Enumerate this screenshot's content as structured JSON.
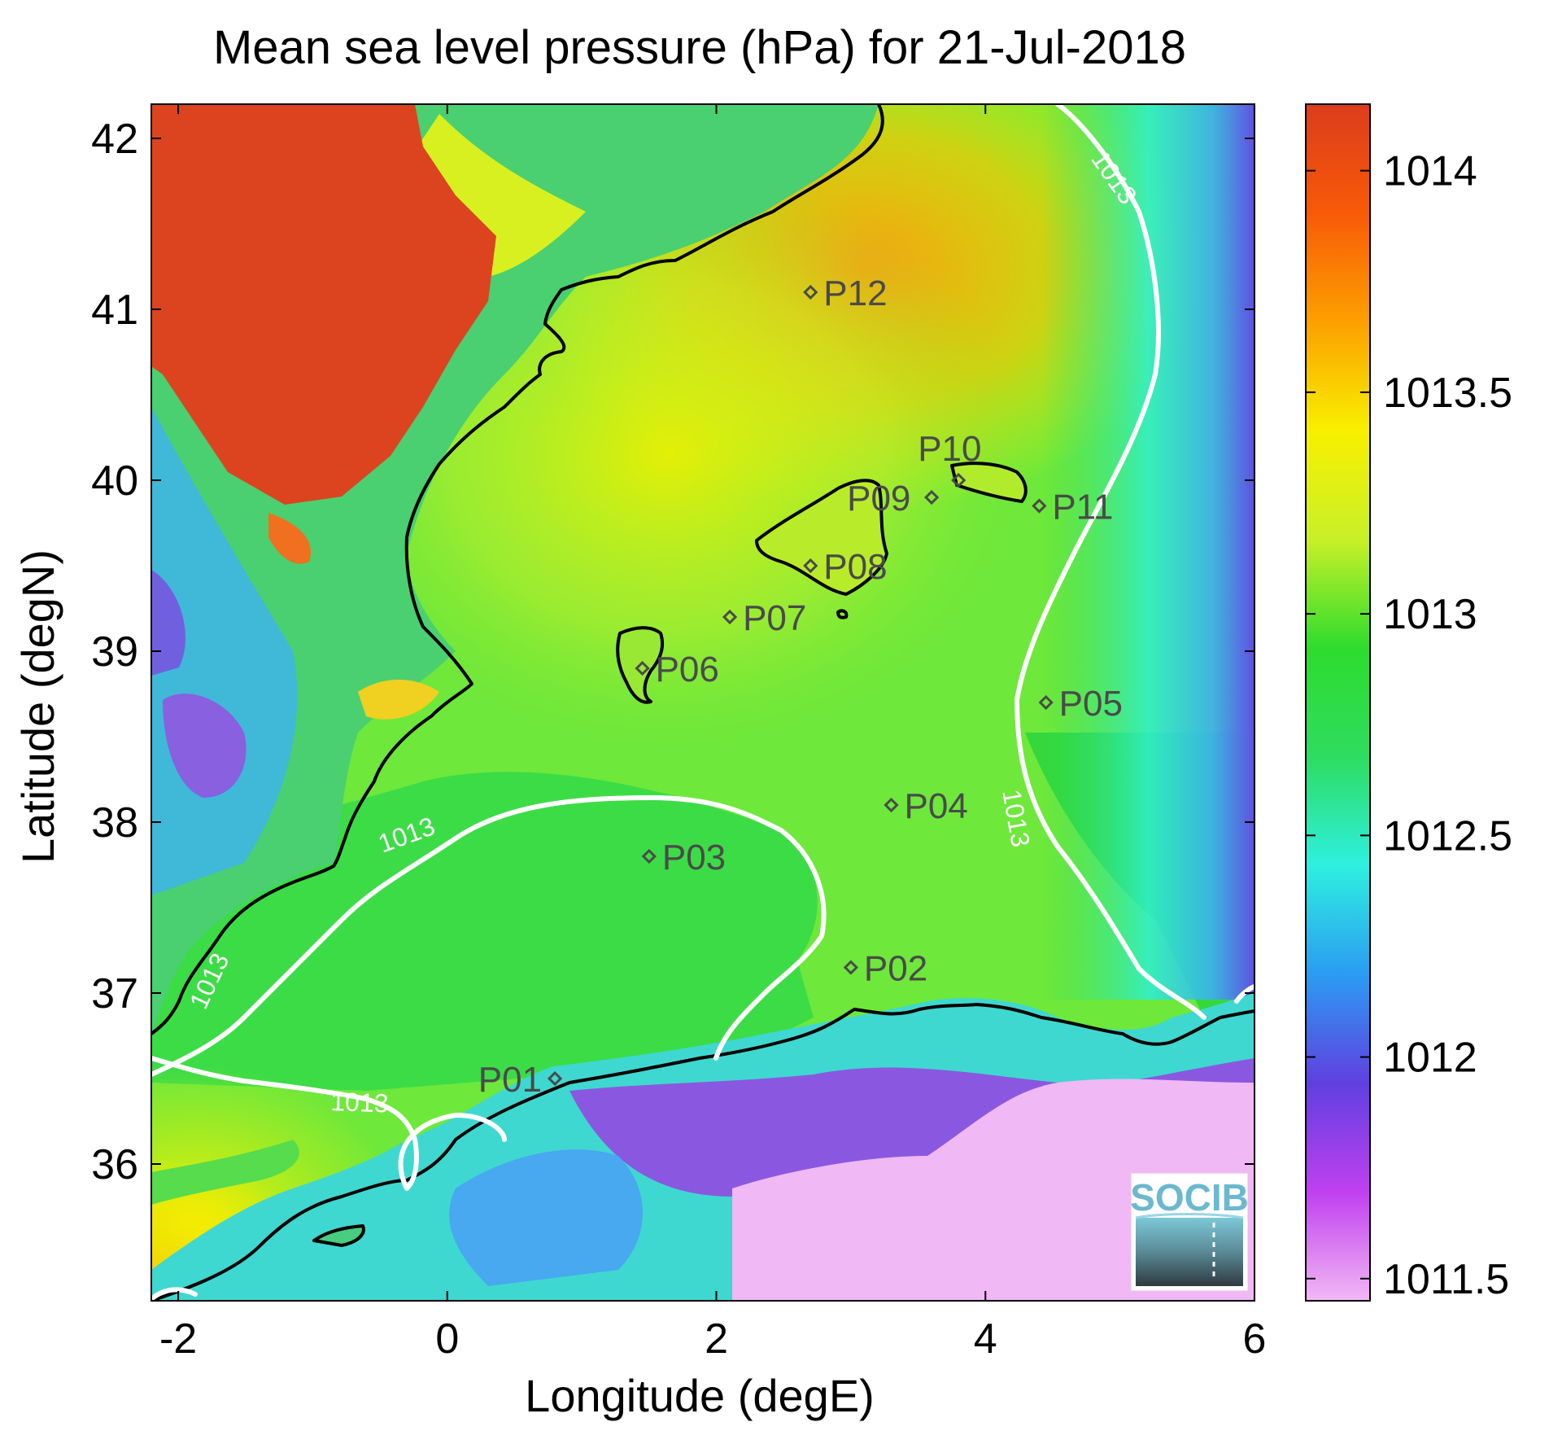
{
  "title": "Mean sea level pressure (hPa) for 21-Jul-2018",
  "map": {
    "xlabel": "Longitude (degE)",
    "ylabel": "Latitude (degN)",
    "xlim": [
      -2.2,
      6.0
    ],
    "ylim": [
      35.2,
      42.2
    ],
    "xticks": [
      -2,
      0,
      2,
      4,
      6
    ],
    "xtick_labels": [
      "-2",
      "0",
      "2",
      "4",
      "6"
    ],
    "yticks": [
      36,
      37,
      38,
      39,
      40,
      41,
      42
    ],
    "ytick_labels": [
      "36",
      "37",
      "38",
      "39",
      "40",
      "41",
      "42"
    ],
    "contour_value": "1013",
    "contour_labels": [
      "1013",
      "1013",
      "1013",
      "1013",
      "1013"
    ],
    "points": [
      {
        "label": "P01",
        "lon": 0.8,
        "lat": 36.5
      },
      {
        "label": "P02",
        "lon": 3.0,
        "lat": 37.15
      },
      {
        "label": "P03",
        "lon": 1.5,
        "lat": 37.8
      },
      {
        "label": "P04",
        "lon": 3.3,
        "lat": 38.1
      },
      {
        "label": "P05",
        "lon": 4.45,
        "lat": 38.7
      },
      {
        "label": "P06",
        "lon": 1.45,
        "lat": 38.9
      },
      {
        "label": "P07",
        "lon": 2.1,
        "lat": 39.2
      },
      {
        "label": "P08",
        "lon": 2.7,
        "lat": 39.5
      },
      {
        "label": "P09",
        "lon": 3.6,
        "lat": 39.9
      },
      {
        "label": "P10",
        "lon": 3.8,
        "lat": 40.0
      },
      {
        "label": "P11",
        "lon": 4.4,
        "lat": 39.85
      },
      {
        "label": "P12",
        "lon": 2.7,
        "lat": 41.1
      }
    ]
  },
  "colorbar": {
    "min": 1011.45,
    "max": 1014.15,
    "ticks": [
      1011.5,
      1012,
      1012.5,
      1013,
      1013.5,
      1014
    ],
    "tick_labels": [
      "1011.5",
      "1012",
      "1012.5",
      "1013",
      "1013.5",
      "1014"
    ],
    "colors": [
      "#f2b8f4",
      "#c040f0",
      "#6040e0",
      "#2b9cf2",
      "#2ef0e0",
      "#2edc60",
      "#2edc2e",
      "#c8f028",
      "#f8f000",
      "#fca000",
      "#f85a08",
      "#dc3c1c"
    ]
  },
  "logo": {
    "text": "SOCIB"
  }
}
